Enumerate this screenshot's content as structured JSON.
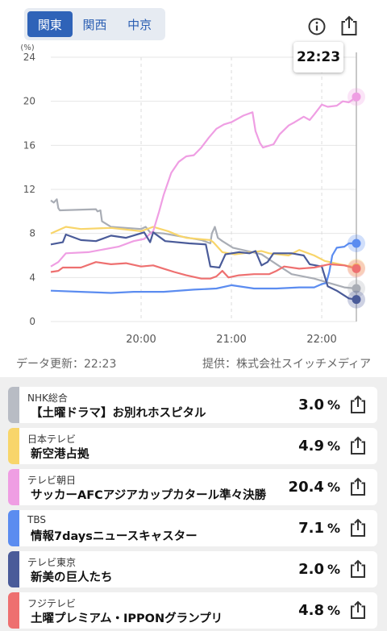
{
  "header": {
    "region_tabs": [
      {
        "label": "関東",
        "active": true
      },
      {
        "label": "関西",
        "active": false
      },
      {
        "label": "中京",
        "active": false
      }
    ],
    "info_icon": "info-icon",
    "share_icon": "share-icon",
    "current_time": "22:23"
  },
  "chart_data": {
    "type": "line",
    "y_unit_label": "(%)",
    "ylim": [
      0,
      24
    ],
    "yticks": [
      "0",
      "4",
      "8",
      "12",
      "16",
      "20",
      "24"
    ],
    "xlabels": [
      {
        "label": "20:00",
        "t": 60
      },
      {
        "label": "21:00",
        "t": 120
      },
      {
        "label": "22:00",
        "t": 180
      }
    ],
    "x_range_minutes": [
      0,
      203
    ],
    "grid": true,
    "current_marker_minute": 203,
    "series": [
      {
        "name": "NHK総合",
        "color": "#a9adb5",
        "points": [
          [
            0,
            11
          ],
          [
            2,
            10.8
          ],
          [
            4,
            11.1
          ],
          [
            5,
            10.3
          ],
          [
            6,
            10.1
          ],
          [
            30,
            10.2
          ],
          [
            31,
            10
          ],
          [
            33,
            10.1
          ],
          [
            34,
            9.1
          ],
          [
            40,
            8.6
          ],
          [
            60,
            8.4
          ],
          [
            63,
            8.6
          ],
          [
            66,
            8.1
          ],
          [
            75,
            8
          ],
          [
            100,
            7.4
          ],
          [
            106,
            7.1
          ],
          [
            107,
            8
          ],
          [
            109,
            8.6
          ],
          [
            111,
            7.6
          ],
          [
            114,
            7.3
          ],
          [
            121,
            6.7
          ],
          [
            140,
            6.1
          ],
          [
            150,
            5.2
          ],
          [
            160,
            4.3
          ],
          [
            175,
            3.9
          ],
          [
            185,
            3.5
          ],
          [
            195,
            3.1
          ],
          [
            203,
            3.0
          ]
        ]
      },
      {
        "name": "日本テレビ",
        "color": "#f8d56a",
        "points": [
          [
            0,
            8
          ],
          [
            5,
            8.3
          ],
          [
            10,
            8.6
          ],
          [
            20,
            8.4
          ],
          [
            40,
            8.5
          ],
          [
            60,
            8.2
          ],
          [
            68,
            8.6
          ],
          [
            78,
            8.2
          ],
          [
            85,
            7.8
          ],
          [
            90,
            7.6
          ],
          [
            106,
            7.4
          ],
          [
            108,
            7.2
          ],
          [
            114,
            6.3
          ],
          [
            122,
            6.1
          ],
          [
            140,
            6.4
          ],
          [
            145,
            6.2
          ],
          [
            158,
            6
          ],
          [
            165,
            6.5
          ],
          [
            175,
            6
          ],
          [
            182,
            5.5
          ],
          [
            192,
            5.2
          ],
          [
            203,
            4.9
          ]
        ]
      },
      {
        "name": "テレビ朝日",
        "color": "#ef9ee3",
        "points": [
          [
            0,
            5
          ],
          [
            5,
            5.4
          ],
          [
            10,
            6.2
          ],
          [
            25,
            6.3
          ],
          [
            45,
            6.8
          ],
          [
            55,
            7.3
          ],
          [
            62,
            7.5
          ],
          [
            68,
            8.2
          ],
          [
            72,
            10
          ],
          [
            75,
            11.5
          ],
          [
            80,
            13.5
          ],
          [
            85,
            14.5
          ],
          [
            90,
            15
          ],
          [
            95,
            15.1
          ],
          [
            100,
            15.8
          ],
          [
            105,
            16.7
          ],
          [
            110,
            17.5
          ],
          [
            115,
            17.9
          ],
          [
            120,
            18.1
          ],
          [
            128,
            18.7
          ],
          [
            134,
            19
          ],
          [
            136,
            17.3
          ],
          [
            139,
            16.2
          ],
          [
            141,
            15.8
          ],
          [
            148,
            16.1
          ],
          [
            152,
            17
          ],
          [
            158,
            17.8
          ],
          [
            162,
            18.1
          ],
          [
            168,
            18.6
          ],
          [
            172,
            18.3
          ],
          [
            175,
            18.8
          ],
          [
            180,
            19.7
          ],
          [
            184,
            19.5
          ],
          [
            190,
            19.6
          ],
          [
            194,
            20
          ],
          [
            198,
            19.9
          ],
          [
            203,
            20.4
          ]
        ]
      },
      {
        "name": "TBS",
        "color": "#5b8cf0",
        "points": [
          [
            0,
            2.8
          ],
          [
            20,
            2.7
          ],
          [
            40,
            2.6
          ],
          [
            55,
            2.7
          ],
          [
            75,
            2.7
          ],
          [
            95,
            2.9
          ],
          [
            110,
            3
          ],
          [
            120,
            3.3
          ],
          [
            135,
            3
          ],
          [
            150,
            3
          ],
          [
            165,
            3.1
          ],
          [
            175,
            3.1
          ],
          [
            180,
            3.4
          ],
          [
            183,
            3.5
          ],
          [
            185,
            4.5
          ],
          [
            187,
            6
          ],
          [
            190,
            6.7
          ],
          [
            195,
            6.8
          ],
          [
            198,
            7.1
          ],
          [
            203,
            7.1
          ]
        ]
      },
      {
        "name": "テレビ東京",
        "color": "#4a5b99",
        "points": [
          [
            0,
            7
          ],
          [
            8,
            7.2
          ],
          [
            10,
            7.9
          ],
          [
            20,
            7.4
          ],
          [
            30,
            7.3
          ],
          [
            40,
            7.8
          ],
          [
            50,
            7.6
          ],
          [
            62,
            8.1
          ],
          [
            66,
            7.2
          ],
          [
            68,
            8.1
          ],
          [
            76,
            7.3
          ],
          [
            92,
            7.1
          ],
          [
            103,
            7
          ],
          [
            106,
            5
          ],
          [
            112,
            4.9
          ],
          [
            116,
            6.1
          ],
          [
            125,
            6.3
          ],
          [
            132,
            6.2
          ],
          [
            136,
            6.4
          ],
          [
            140,
            5.1
          ],
          [
            144,
            5.4
          ],
          [
            148,
            6.2
          ],
          [
            160,
            6.2
          ],
          [
            168,
            6
          ],
          [
            172,
            5.2
          ],
          [
            180,
            5
          ],
          [
            184,
            3.2
          ],
          [
            190,
            2.8
          ],
          [
            198,
            2.1
          ],
          [
            203,
            2.0
          ]
        ]
      },
      {
        "name": "フジテレビ",
        "color": "#ee7070",
        "points": [
          [
            0,
            4.5
          ],
          [
            5,
            4.6
          ],
          [
            8,
            4.9
          ],
          [
            20,
            4.9
          ],
          [
            30,
            5.4
          ],
          [
            40,
            5.2
          ],
          [
            50,
            5.3
          ],
          [
            60,
            5
          ],
          [
            68,
            5.1
          ],
          [
            75,
            4.8
          ],
          [
            82,
            4.5
          ],
          [
            90,
            4.2
          ],
          [
            100,
            3.9
          ],
          [
            106,
            3.9
          ],
          [
            110,
            4.1
          ],
          [
            114,
            4.6
          ],
          [
            118,
            4
          ],
          [
            125,
            4.2
          ],
          [
            135,
            4.3
          ],
          [
            145,
            4.3
          ],
          [
            150,
            4.6
          ],
          [
            155,
            5
          ],
          [
            165,
            4.8
          ],
          [
            175,
            4.9
          ],
          [
            185,
            5.2
          ],
          [
            195,
            5.1
          ],
          [
            203,
            4.8
          ]
        ]
      }
    ]
  },
  "footer": {
    "updated": "データ更新：22:23",
    "provider": "提供：株式会社スイッチメディア"
  },
  "list": [
    {
      "station": "NHK総合",
      "program": "【土曜ドラマ】お別れホスピタル",
      "rating": "3.0",
      "unit": "%",
      "color": "#b8bcc4"
    },
    {
      "station": "日本テレビ",
      "program": "新空港占拠",
      "rating": "4.9",
      "unit": "%",
      "color": "#f8d56a"
    },
    {
      "station": "テレビ朝日",
      "program": "サッカーAFCアジアカップカタール準々決勝",
      "rating": "20.4",
      "unit": "%",
      "color": "#ef9ee3"
    },
    {
      "station": "TBS",
      "program": "情報7daysニュースキャスター",
      "rating": "7.1",
      "unit": "%",
      "color": "#5b8cf0"
    },
    {
      "station": "テレビ東京",
      "program": "新美の巨人たち",
      "rating": "2.0",
      "unit": "%",
      "color": "#4a5b99"
    },
    {
      "station": "フジテレビ",
      "program": "土曜プレミアム・IPPONグランプリ",
      "rating": "4.8",
      "unit": "%",
      "color": "#ee7070"
    }
  ]
}
